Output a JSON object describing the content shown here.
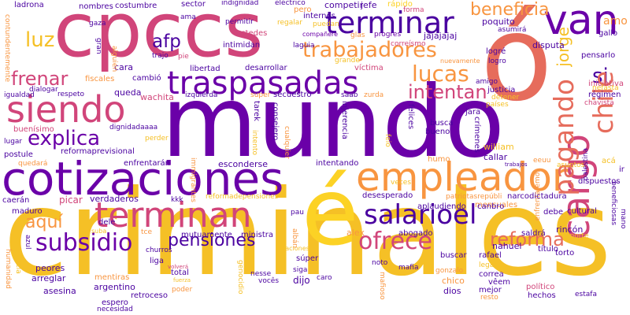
{
  "words": [
    {
      "text": "mundo",
      "color": "#6a00a8"
    },
    {
      "text": "criminales",
      "color": "#f5c026"
    },
    {
      "text": "cpccs",
      "color": "#d1457a"
    },
    {
      "text": "cotizaciones",
      "color": "#6a00a8"
    },
    {
      "text": "é",
      "color": "#fcd225"
    },
    {
      "text": "ó",
      "color": "#e66c5c"
    },
    {
      "text": "empleador",
      "color": "#f89540"
    },
    {
      "text": "cargo",
      "color": "#d1457a"
    },
    {
      "text": "siendo",
      "color": "#d1457a"
    },
    {
      "text": "traspasadas",
      "color": "#6a00a8"
    },
    {
      "text": "terminan",
      "color": "#d1457a"
    },
    {
      "text": "van",
      "color": "#6a00a8"
    },
    {
      "text": "terminar",
      "color": "#4a02a0"
    },
    {
      "text": "pagando",
      "color": "#e66c5c"
    },
    {
      "text": "salarioel",
      "color": "#4a02a0"
    },
    {
      "text": "trabajadores",
      "color": "#f89540"
    },
    {
      "text": "explica",
      "color": "#6a00a8"
    },
    {
      "text": "ofrece",
      "color": "#d1457a"
    },
    {
      "text": "lucas",
      "color": "#f89540"
    },
    {
      "text": "subsidio",
      "color": "#6a00a8"
    },
    {
      "text": "pensiones",
      "color": "#4a02a0"
    },
    {
      "text": "reforma",
      "color": "#e66c5c"
    },
    {
      "text": "intentan",
      "color": "#d1457a"
    },
    {
      "text": "frenar",
      "color": "#d1457a"
    },
    {
      "text": "luz",
      "color": "#f5c026"
    },
    {
      "text": "afp",
      "color": "#4a02a0"
    },
    {
      "text": "beneficia",
      "color": "#f89540"
    },
    {
      "text": "aquí",
      "color": "#f89540"
    },
    {
      "text": "si",
      "color": "#4a02a0"
    },
    {
      "text": "chile",
      "color": "#e66c5c"
    },
    {
      "text": "ladrona",
      "color": "#4a02a0"
    },
    {
      "text": "nombres",
      "color": "#4a02a0"
    },
    {
      "text": "costumbre",
      "color": "#4a02a0"
    },
    {
      "text": "sector",
      "color": "#4a02a0"
    },
    {
      "text": "indignidad",
      "color": "#4a02a0"
    },
    {
      "text": "eléctrico",
      "color": "#4a02a0"
    },
    {
      "text": "competir",
      "color": "#4a02a0"
    },
    {
      "text": "jefe",
      "color": "#4a02a0"
    },
    {
      "text": "rápido",
      "color": "#fcd225"
    },
    {
      "text": "pero",
      "color": "#f89540"
    },
    {
      "text": "internos",
      "color": "#4a02a0"
    },
    {
      "text": "forma",
      "color": "#d1457a"
    },
    {
      "text": "poquito",
      "color": "#4a02a0"
    },
    {
      "text": "asumirá",
      "color": "#4a02a0"
    },
    {
      "text": "jorge",
      "color": "#f5c026"
    },
    {
      "text": "amo",
      "color": "#f89540"
    },
    {
      "text": "disputa",
      "color": "#4a02a0"
    },
    {
      "text": "gallo",
      "color": "#4a02a0"
    },
    {
      "text": "logré",
      "color": "#4a02a0"
    },
    {
      "text": "logro",
      "color": "#4a02a0"
    },
    {
      "text": "pensarlo",
      "color": "#4a02a0"
    },
    {
      "text": "iniciativa",
      "color": "#d1457a"
    },
    {
      "text": "nefasta",
      "color": "#f5c026"
    },
    {
      "text": "régimen",
      "color": "#4a02a0"
    },
    {
      "text": "chavista",
      "color": "#d1457a"
    },
    {
      "text": "justicia",
      "color": "#4a02a0"
    },
    {
      "text": "detener",
      "color": "#f5c026"
    },
    {
      "text": "amigo",
      "color": "#4a02a0"
    },
    {
      "text": "ama",
      "color": "#4a02a0"
    },
    {
      "text": "permitir",
      "color": "#4a02a0"
    },
    {
      "text": "regalar",
      "color": "#f5c026"
    },
    {
      "text": "puedan",
      "color": "#f5c026"
    },
    {
      "text": "ustedes",
      "color": "#d1457a"
    },
    {
      "text": "compañere",
      "color": "#6a00a8"
    },
    {
      "text": "glas",
      "color": "#f89540"
    },
    {
      "text": "progres",
      "color": "#6a00a8"
    },
    {
      "text": "jajajajaj",
      "color": "#4a02a0"
    },
    {
      "text": "intimidan",
      "color": "#4a02a0"
    },
    {
      "text": "laguia",
      "color": "#4a02a0"
    },
    {
      "text": "grande",
      "color": "#f5c026"
    },
    {
      "text": "nuevamente",
      "color": "#f89540"
    },
    {
      "text": "desarrollar",
      "color": "#4a02a0"
    },
    {
      "text": "víctima",
      "color": "#d1457a"
    },
    {
      "text": "libertad",
      "color": "#4a02a0"
    },
    {
      "text": "izquierda",
      "color": "#4a02a0"
    },
    {
      "text": "super",
      "color": "#f89540"
    },
    {
      "text": "secuestro",
      "color": "#4a02a0"
    },
    {
      "text": "saab",
      "color": "#4a02a0"
    },
    {
      "text": "zurda",
      "color": "#f89540"
    },
    {
      "text": "países",
      "color": "#f5c026"
    },
    {
      "text": "enfrentaremos",
      "color": "#f89540"
    },
    {
      "text": "palestina",
      "color": "#4a02a0"
    },
    {
      "text": "cambió",
      "color": "#4a02a0"
    },
    {
      "text": "queda",
      "color": "#4a02a0"
    },
    {
      "text": "wachita",
      "color": "#d1457a"
    },
    {
      "text": "jara",
      "color": "#4a02a0"
    },
    {
      "text": "busca",
      "color": "#4a02a0"
    },
    {
      "text": "bueno",
      "color": "#4a02a0"
    },
    {
      "text": "tarek",
      "color": "#4a02a0"
    },
    {
      "text": "injerencia",
      "color": "#4a02a0"
    },
    {
      "text": "consejero",
      "color": "#4a02a0"
    },
    {
      "text": "felices",
      "color": "#4a02a0"
    },
    {
      "text": "crímenes",
      "color": "#4a02a0"
    },
    {
      "text": "william",
      "color": "#f5c026"
    },
    {
      "text": "callar",
      "color": "#4a02a0"
    },
    {
      "text": "trabajos",
      "color": "#4a02a0"
    },
    {
      "text": "asuntos",
      "color": "#f5c026"
    },
    {
      "text": "acá",
      "color": "#f5c026"
    },
    {
      "text": "cara",
      "color": "#4a02a0"
    },
    {
      "text": "dignidadaaaa",
      "color": "#4a02a0"
    },
    {
      "text": "perder",
      "color": "#f5c026"
    },
    {
      "text": "reformaprevisional",
      "color": "#4a02a0"
    },
    {
      "text": "enfrentarán",
      "color": "#4a02a0"
    },
    {
      "text": "esconderse",
      "color": "#4a02a0"
    },
    {
      "text": "intentando",
      "color": "#4a02a0"
    },
    {
      "text": "humo",
      "color": "#f89540"
    },
    {
      "text": "veces",
      "color": "#f5c026"
    },
    {
      "text": "eeuu",
      "color": "#f89540"
    },
    {
      "text": "ir",
      "color": "#4a02a0"
    },
    {
      "text": "dispuestos",
      "color": "#4a02a0"
    },
    {
      "text": "reformadepensiones",
      "color": "#f5c026"
    },
    {
      "text": "patriotasrepúbli",
      "color": "#f89540"
    },
    {
      "text": "narcodictadura",
      "color": "#4a02a0"
    },
    {
      "text": "dialogar",
      "color": "#4a02a0"
    },
    {
      "text": "respeto",
      "color": "#4a02a0"
    },
    {
      "text": "fiscales",
      "color": "#f89540"
    },
    {
      "text": "igualdad",
      "color": "#4a02a0"
    },
    {
      "text": "buenísimo",
      "color": "#d1457a"
    },
    {
      "text": "lugar",
      "color": "#4a02a0"
    },
    {
      "text": "postule",
      "color": "#4a02a0"
    },
    {
      "text": "quedará",
      "color": "#f89540"
    },
    {
      "text": "caerán",
      "color": "#4a02a0"
    },
    {
      "text": "maduro",
      "color": "#4a02a0"
    },
    {
      "text": "picar",
      "color": "#d1457a"
    },
    {
      "text": "verdaderos",
      "color": "#4a02a0"
    },
    {
      "text": "kkk",
      "color": "#4a02a0"
    },
    {
      "text": "aplaudiendo",
      "color": "#4a02a0"
    },
    {
      "text": "desesperado",
      "color": "#4a02a0"
    },
    {
      "text": "mensuales",
      "color": "#f89540"
    },
    {
      "text": "canbro",
      "color": "#4a02a0"
    },
    {
      "text": "debe",
      "color": "#4a02a0"
    },
    {
      "text": "cultural",
      "color": "#4a02a0"
    },
    {
      "text": "rincón",
      "color": "#4a02a0"
    },
    {
      "text": "saldrá",
      "color": "#4a02a0"
    },
    {
      "text": "aporte",
      "color": "#f5c026"
    },
    {
      "text": "torto",
      "color": "#4a02a0"
    },
    {
      "text": "beneficiosas",
      "color": "#4a02a0"
    },
    {
      "text": "mano",
      "color": "#4a02a0"
    },
    {
      "text": "pau",
      "color": "#4a02a0"
    },
    {
      "text": "dele",
      "color": "#4a02a0"
    },
    {
      "text": "tce",
      "color": "#f89540"
    },
    {
      "text": "mutuamente",
      "color": "#4a02a0"
    },
    {
      "text": "ministra",
      "color": "#4a02a0"
    },
    {
      "text": "alex",
      "color": "#f89540"
    },
    {
      "text": "abogado",
      "color": "#4a02a0"
    },
    {
      "text": "nahuel",
      "color": "#4a02a0"
    },
    {
      "text": "título",
      "color": "#4a02a0"
    },
    {
      "text": "rafael",
      "color": "#4a02a0"
    },
    {
      "text": "buscar",
      "color": "#4a02a0"
    },
    {
      "text": "legado",
      "color": "#f5c026"
    },
    {
      "text": "correa",
      "color": "#4a02a0"
    },
    {
      "text": "vêem",
      "color": "#4a02a0"
    },
    {
      "text": "mejor",
      "color": "#4a02a0"
    },
    {
      "text": "resto",
      "color": "#f89540"
    },
    {
      "text": "político",
      "color": "#d1457a"
    },
    {
      "text": "hechos",
      "color": "#4a02a0"
    },
    {
      "text": "estafa",
      "color": "#4a02a0"
    },
    {
      "text": "churros",
      "color": "#4a02a0"
    },
    {
      "text": "liga",
      "color": "#4a02a0"
    },
    {
      "text": "súper",
      "color": "#4a02a0"
    },
    {
      "text": "relaciones",
      "color": "#f5c026"
    },
    {
      "text": "peores",
      "color": "#4a02a0"
    },
    {
      "text": "arreglar",
      "color": "#4a02a0"
    },
    {
      "text": "mentiras",
      "color": "#f89540"
    },
    {
      "text": "argentino",
      "color": "#4a02a0"
    },
    {
      "text": "asesina",
      "color": "#4a02a0"
    },
    {
      "text": "espero",
      "color": "#4a02a0"
    },
    {
      "text": "retroceso",
      "color": "#4a02a0"
    },
    {
      "text": "necesidad",
      "color": "#4a02a0"
    },
    {
      "text": "total",
      "color": "#4a02a0"
    },
    {
      "text": "poder",
      "color": "#f89540"
    },
    {
      "text": "fuerza",
      "color": "#f5c026"
    },
    {
      "text": "volverá",
      "color": "#d1457a"
    },
    {
      "text": "nesse",
      "color": "#4a02a0"
    },
    {
      "text": "siga",
      "color": "#4a02a0"
    },
    {
      "text": "vocês",
      "color": "#4a02a0"
    },
    {
      "text": "dijo",
      "color": "#4a02a0"
    },
    {
      "text": "caro",
      "color": "#4a02a0"
    },
    {
      "text": "mafia",
      "color": "#4a02a0"
    },
    {
      "text": "gonzalo",
      "color": "#f89540"
    },
    {
      "text": "chico",
      "color": "#f89540"
    },
    {
      "text": "dios",
      "color": "#4a02a0"
    },
    {
      "text": "mafioso",
      "color": "#f89540"
    },
    {
      "text": "noto",
      "color": "#4a02a0"
    },
    {
      "text": "genocidio",
      "color": "#f5c026"
    },
    {
      "text": "albán",
      "color": "#f89540"
    },
    {
      "text": "humanidad",
      "color": "#f89540"
    },
    {
      "text": "conciencia",
      "color": "#f5c026"
    },
    {
      "text": "azul",
      "color": "#4a02a0"
    },
    {
      "text": "immigrantes",
      "color": "#f89540"
    },
    {
      "text": "cualquier",
      "color": "#f89540"
    },
    {
      "text": "intento",
      "color": "#f5c026"
    },
    {
      "text": "feio",
      "color": "#f5c026"
    },
    {
      "text": "contundentemente",
      "color": "#f89540"
    },
    {
      "text": "alguien",
      "color": "#f89540"
    },
    {
      "text": "gran",
      "color": "#4a02a0"
    },
    {
      "text": "trajo",
      "color": "#4a02a0"
    },
    {
      "text": "gaza",
      "color": "#4a02a0"
    },
    {
      "text": "correísmo",
      "color": "#d1457a"
    },
    {
      "text": "pie",
      "color": "#d1457a"
    },
    {
      "text": "suba",
      "color": "#f5c026"
    }
  ]
}
